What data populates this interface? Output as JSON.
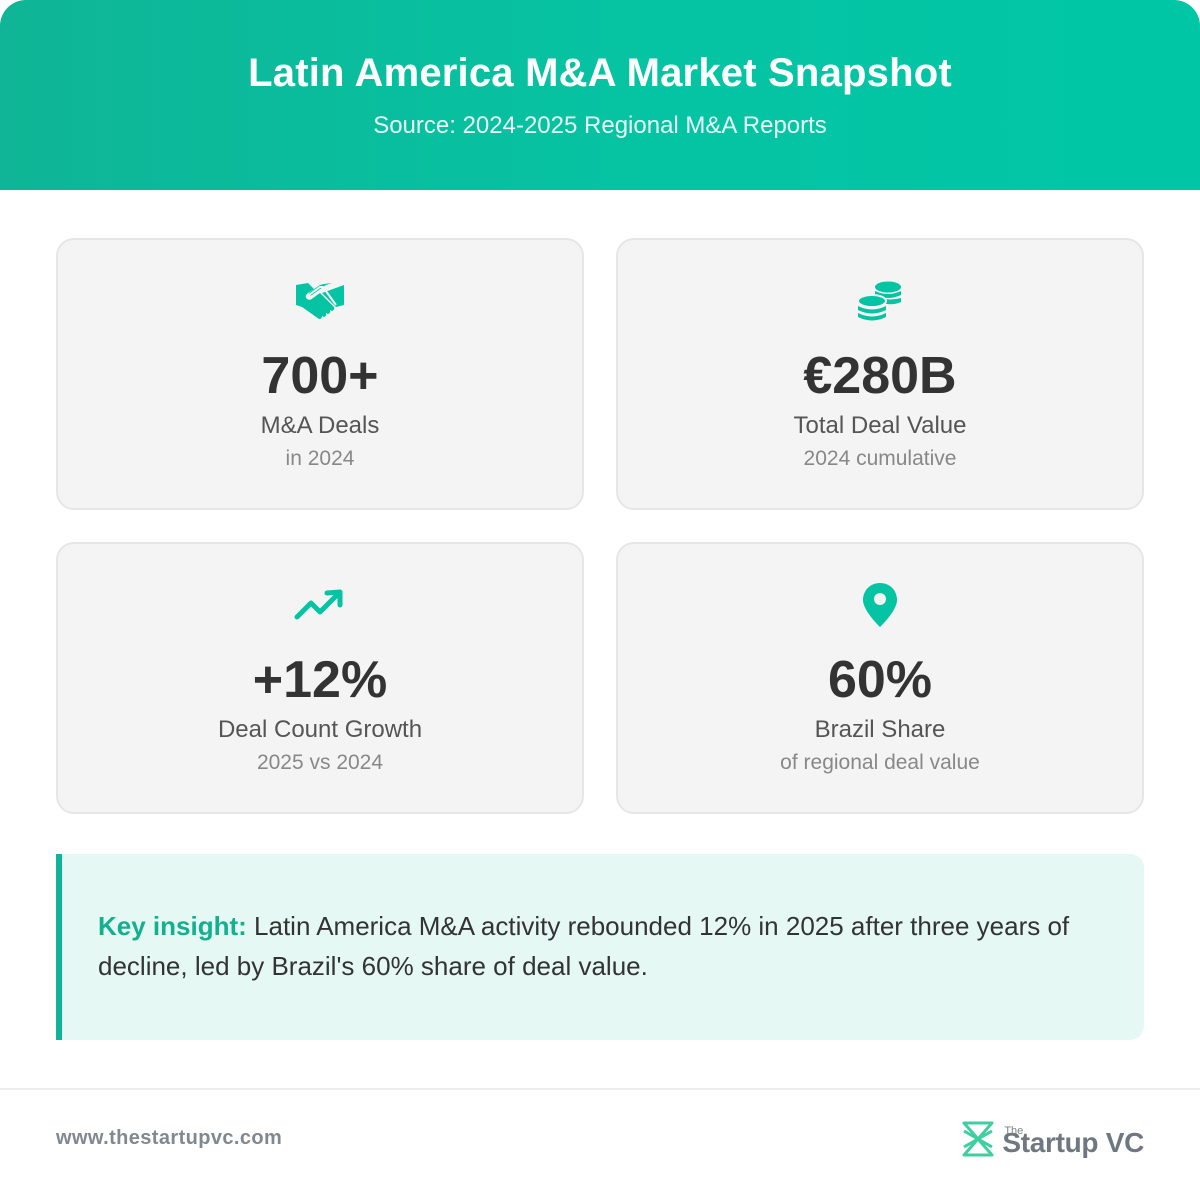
{
  "header": {
    "title": "Latin America M&A Market Snapshot",
    "subtitle": "Source: 2024-2025 Regional M&A Reports"
  },
  "cards": [
    {
      "icon": "handshake-icon",
      "value": "700+",
      "label": "M&A Deals",
      "sublabel": "in 2024"
    },
    {
      "icon": "coins-icon",
      "value": "€280B",
      "label": "Total Deal Value",
      "sublabel": "2024 cumulative"
    },
    {
      "icon": "trending-up-icon",
      "value": "+12%",
      "label": "Deal Count Growth",
      "sublabel": "2025 vs 2024"
    },
    {
      "icon": "map-pin-icon",
      "value": "60%",
      "label": "Brazil Share",
      "sublabel": "of regional deal value"
    }
  ],
  "insight": {
    "lead": "Key insight:",
    "text": " Latin America M&A activity rebounded 12% in 2025 after three years of decline, led by Brazil's 60% share of deal value."
  },
  "footer": {
    "url": "www.thestartupvc.com",
    "brand_small": "The",
    "brand_name": "Startup VC"
  },
  "colors": {
    "accent": "#05c4a3",
    "accent_dark": "#0fb596",
    "card_bg": "#f4f4f4",
    "insight_bg": "#e5f8f3"
  }
}
